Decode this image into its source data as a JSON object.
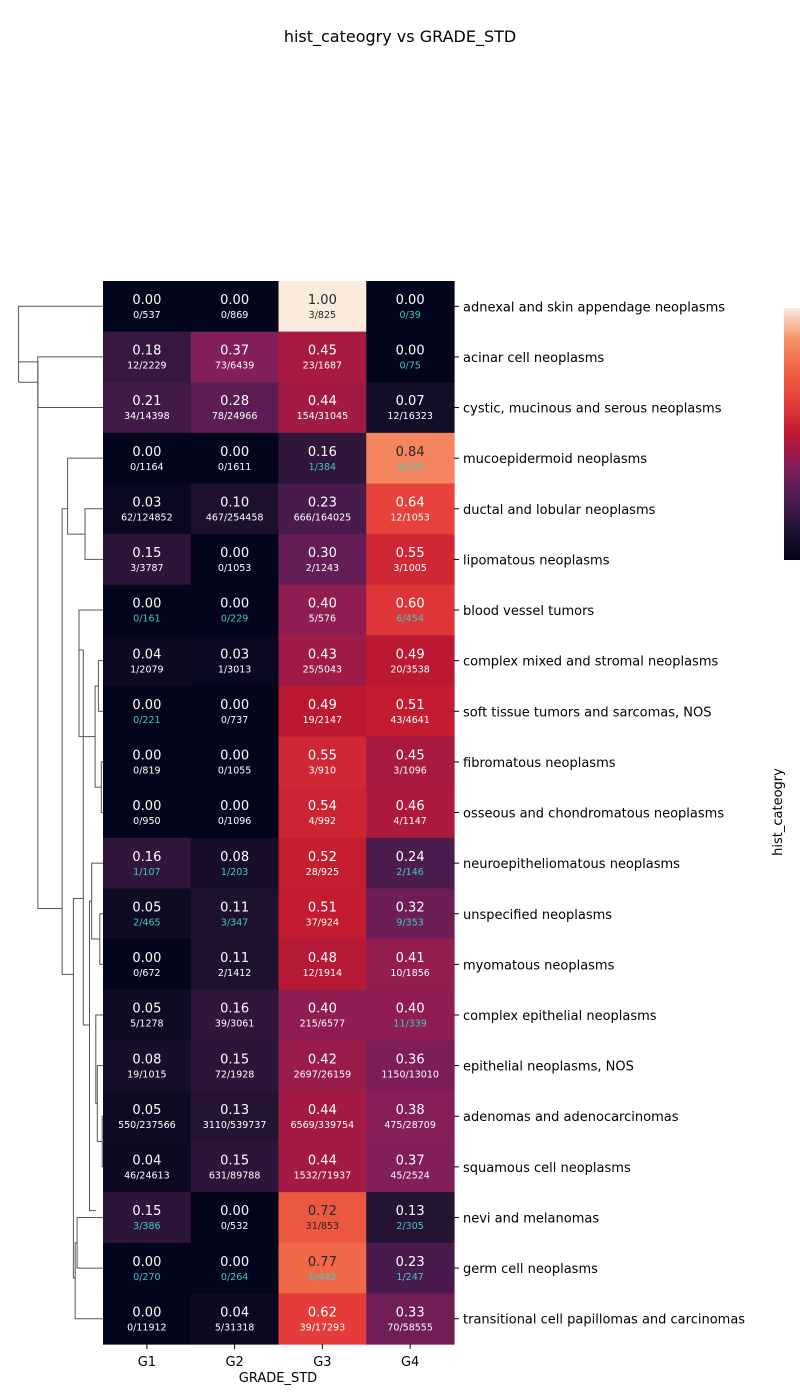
{
  "chart_data": {
    "type": "heatmap",
    "title": "hist_cateogry vs GRADE_STD",
    "xlabel": "GRADE_STD",
    "ylabel": "hist_cateogry",
    "columns": [
      "G1",
      "G2",
      "G3",
      "G4"
    ],
    "colorbar": {
      "range": [
        0,
        1
      ],
      "ticks": []
    },
    "dendrogram": "left",
    "rows": [
      {
        "label": "adnexal and skin appendage neoplasms",
        "values": [
          0.0,
          0.0,
          1.0,
          0.0
        ],
        "counts": [
          "0/537",
          "0/869",
          "3/825",
          "0/39"
        ]
      },
      {
        "label": "acinar cell neoplasms",
        "values": [
          0.18,
          0.37,
          0.45,
          0.0
        ],
        "counts": [
          "12/2229",
          "73/6439",
          "23/1687",
          "0/75"
        ]
      },
      {
        "label": "cystic, mucinous and serous neoplasms",
        "values": [
          0.21,
          0.28,
          0.44,
          0.07
        ],
        "counts": [
          "34/14398",
          "78/24966",
          "154/31045",
          "12/16323"
        ]
      },
      {
        "label": "mucoepidermoid neoplasms",
        "values": [
          0.0,
          0.0,
          0.16,
          0.84
        ],
        "counts": [
          "0/1164",
          "0/1611",
          "1/384",
          "4/235"
        ]
      },
      {
        "label": "ductal and lobular neoplasms",
        "values": [
          0.03,
          0.1,
          0.23,
          0.64
        ],
        "counts": [
          "62/124852",
          "467/254458",
          "666/164025",
          "12/1053"
        ]
      },
      {
        "label": "lipomatous neoplasms",
        "values": [
          0.15,
          0.0,
          0.3,
          0.55
        ],
        "counts": [
          "3/3787",
          "0/1053",
          "2/1243",
          "3/1005"
        ]
      },
      {
        "label": "blood vessel tumors",
        "values": [
          0.0,
          0.0,
          0.4,
          0.6
        ],
        "counts": [
          "0/161",
          "0/229",
          "5/576",
          "6/454"
        ]
      },
      {
        "label": "complex mixed and stromal neoplasms",
        "values": [
          0.04,
          0.03,
          0.43,
          0.49
        ],
        "counts": [
          "1/2079",
          "1/3013",
          "25/5043",
          "20/3538"
        ]
      },
      {
        "label": "soft tissue tumors and sarcomas, NOS",
        "values": [
          0.0,
          0.0,
          0.49,
          0.51
        ],
        "counts": [
          "0/221",
          "0/737",
          "19/2147",
          "43/4641"
        ]
      },
      {
        "label": "fibromatous neoplasms",
        "values": [
          0.0,
          0.0,
          0.55,
          0.45
        ],
        "counts": [
          "0/819",
          "0/1055",
          "3/910",
          "3/1096"
        ]
      },
      {
        "label": "osseous and chondromatous neoplasms",
        "values": [
          0.0,
          0.0,
          0.54,
          0.46
        ],
        "counts": [
          "0/950",
          "0/1096",
          "4/992",
          "4/1147"
        ]
      },
      {
        "label": "neuroepitheliomatous neoplasms",
        "values": [
          0.16,
          0.08,
          0.52,
          0.24
        ],
        "counts": [
          "1/107",
          "1/203",
          "28/925",
          "2/146"
        ]
      },
      {
        "label": "unspecified neoplasms",
        "values": [
          0.05,
          0.11,
          0.51,
          0.32
        ],
        "counts": [
          "2/465",
          "3/347",
          "37/924",
          "9/353"
        ]
      },
      {
        "label": "myomatous neoplasms",
        "values": [
          0.0,
          0.11,
          0.48,
          0.41
        ],
        "counts": [
          "0/672",
          "2/1412",
          "12/1914",
          "10/1856"
        ]
      },
      {
        "label": "complex epithelial neoplasms",
        "values": [
          0.05,
          0.16,
          0.4,
          0.4
        ],
        "counts": [
          "5/1278",
          "39/3061",
          "215/6577",
          "11/339"
        ]
      },
      {
        "label": "epithelial neoplasms, NOS",
        "values": [
          0.08,
          0.15,
          0.42,
          0.36
        ],
        "counts": [
          "19/1015",
          "72/1928",
          "2697/26159",
          "1150/13010"
        ]
      },
      {
        "label": "adenomas and adenocarcinomas",
        "values": [
          0.05,
          0.13,
          0.44,
          0.38
        ],
        "counts": [
          "550/237566",
          "3110/539737",
          "6569/339754",
          "475/28709"
        ]
      },
      {
        "label": "squamous cell neoplasms",
        "values": [
          0.04,
          0.15,
          0.44,
          0.37
        ],
        "counts": [
          "46/24613",
          "631/89788",
          "1532/71937",
          "45/2524"
        ]
      },
      {
        "label": "nevi and melanomas",
        "values": [
          0.15,
          0.0,
          0.72,
          0.13
        ],
        "counts": [
          "3/386",
          "0/532",
          "31/853",
          "2/305"
        ]
      },
      {
        "label": "germ cell neoplasms",
        "values": [
          0.0,
          0.0,
          0.77,
          0.23
        ],
        "counts": [
          "0/270",
          "0/264",
          "6/443",
          "1/247"
        ]
      },
      {
        "label": "transitional cell papillomas and carcinomas",
        "values": [
          0.0,
          0.04,
          0.62,
          0.33
        ],
        "counts": [
          "0/11912",
          "5/31318",
          "39/17293",
          "70/58555"
        ]
      }
    ]
  }
}
